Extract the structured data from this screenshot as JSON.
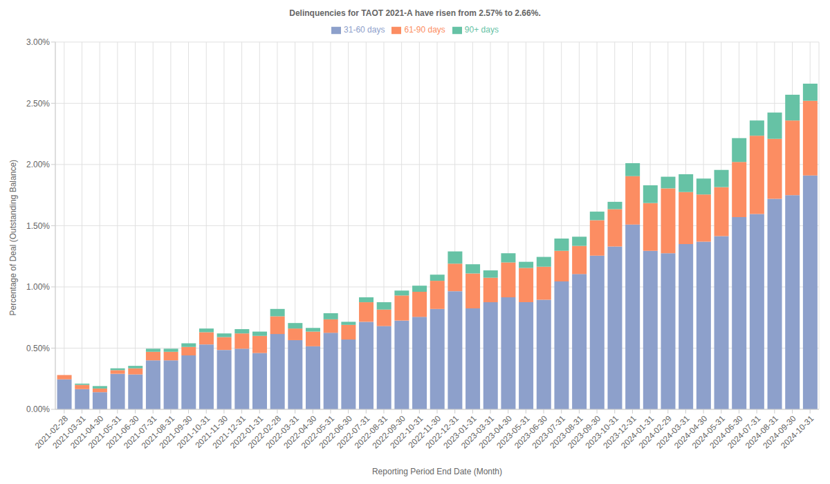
{
  "chart_data": {
    "type": "bar",
    "title": "Delinquencies for TAOT 2021-A have risen from 2.57% to 2.66%.",
    "x_label": "Reporting Period End Date (Month)",
    "y_label": "Percentage of Deal (Outstanding Balance)",
    "stacked": true,
    "grid": true,
    "legend": "top",
    "categories": [
      "2021-02-28",
      "2021-03-31",
      "2021-04-30",
      "2021-05-31",
      "2021-06-30",
      "2021-07-31",
      "2021-08-31",
      "2021-09-30",
      "2021-10-31",
      "2021-11-30",
      "2021-12-31",
      "2022-01-31",
      "2022-02-28",
      "2022-03-31",
      "2022-04-30",
      "2022-05-31",
      "2022-06-30",
      "2022-07-31",
      "2022-08-31",
      "2022-09-30",
      "2022-10-31",
      "2022-11-30",
      "2022-12-31",
      "2023-01-31",
      "2023-03-31",
      "2023-04-30",
      "2023-05-31",
      "2023-06-30",
      "2023-07-31",
      "2023-08-31",
      "2023-09-30",
      "2023-10-31",
      "2023-12-31",
      "2024-01-31",
      "2024-02-29",
      "2024-03-31",
      "2024-04-30",
      "2024-05-31",
      "2024-06-30",
      "2024-07-31",
      "2024-08-31",
      "2024-09-30",
      "2024-10-31"
    ],
    "series": [
      {
        "name": "31-60 days",
        "color": "#8da0cb",
        "values": [
          0.245,
          0.165,
          0.14,
          0.29,
          0.285,
          0.4,
          0.4,
          0.44,
          0.53,
          0.485,
          0.495,
          0.46,
          0.615,
          0.565,
          0.515,
          0.625,
          0.57,
          0.715,
          0.68,
          0.725,
          0.755,
          0.82,
          0.965,
          0.825,
          0.875,
          0.915,
          0.875,
          0.895,
          1.045,
          1.105,
          1.255,
          1.33,
          1.51,
          1.295,
          1.275,
          1.35,
          1.37,
          1.415,
          1.57,
          1.595,
          1.72,
          1.75,
          1.91
        ]
      },
      {
        "name": "61-90 days",
        "color": "#fc8d62",
        "values": [
          0.035,
          0.035,
          0.03,
          0.03,
          0.05,
          0.07,
          0.07,
          0.07,
          0.1,
          0.105,
          0.125,
          0.14,
          0.145,
          0.095,
          0.12,
          0.11,
          0.12,
          0.16,
          0.135,
          0.205,
          0.205,
          0.23,
          0.225,
          0.285,
          0.2,
          0.285,
          0.28,
          0.27,
          0.25,
          0.23,
          0.29,
          0.305,
          0.395,
          0.39,
          0.53,
          0.425,
          0.385,
          0.4,
          0.45,
          0.64,
          0.49,
          0.61,
          0.61
        ]
      },
      {
        "name": "90+ days",
        "color": "#66c2a5",
        "values": [
          0,
          0.01,
          0.02,
          0.015,
          0.02,
          0.025,
          0.025,
          0.03,
          0.03,
          0.03,
          0.035,
          0.035,
          0.06,
          0.045,
          0.03,
          0.05,
          0.025,
          0.04,
          0.06,
          0.04,
          0.05,
          0.05,
          0.1,
          0.075,
          0.06,
          0.075,
          0.05,
          0.08,
          0.1,
          0.075,
          0.07,
          0.06,
          0.105,
          0.145,
          0.095,
          0.145,
          0.13,
          0.14,
          0.195,
          0.125,
          0.215,
          0.21,
          0.14
        ]
      }
    ],
    "ylim": [
      0,
      3
    ],
    "yticks": [
      {
        "value": 0,
        "label": "0.00%"
      },
      {
        "value": 0.5,
        "label": "0.50%"
      },
      {
        "value": 1,
        "label": "1.00%"
      },
      {
        "value": 1.5,
        "label": "1.50%"
      },
      {
        "value": 2,
        "label": "2.00%"
      },
      {
        "value": 2.5,
        "label": "2.50%"
      },
      {
        "value": 3,
        "label": "3.00%"
      }
    ]
  }
}
